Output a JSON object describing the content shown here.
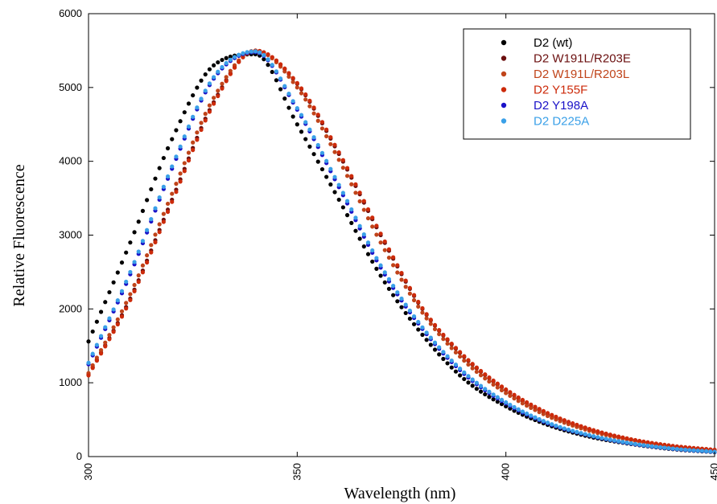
{
  "chart_data": {
    "type": "scatter",
    "title": "",
    "xlabel": "Wavelength (nm)",
    "ylabel": "Relative Fluorescence",
    "xlim": [
      300,
      450
    ],
    "ylim": [
      0,
      6000
    ],
    "x_ticks": [
      300,
      350,
      400,
      450
    ],
    "y_ticks": [
      0,
      1000,
      2000,
      3000,
      4000,
      5000,
      6000
    ],
    "x_tick_labels": [
      "300",
      "350",
      "400",
      "450"
    ],
    "y_tick_labels": [
      "0",
      "1000",
      "2000",
      "3000",
      "4000",
      "5000",
      "6000"
    ],
    "grid": false,
    "legend_position": "top-right",
    "x": [
      300,
      310,
      320,
      330,
      340,
      350,
      360,
      370,
      380,
      390,
      400,
      410,
      420,
      430,
      440,
      450
    ],
    "series": [
      {
        "name": "D2 (wt)",
        "color": "#000000",
        "values": [
          1560,
          2900,
          4300,
          5300,
          5450,
          4500,
          3480,
          2450,
          1650,
          1050,
          680,
          430,
          270,
          170,
          100,
          60
        ]
      },
      {
        "name": "D2 W191L/R203E",
        "color": "#6b0f0f",
        "values": [
          1110,
          2140,
          3480,
          4800,
          5500,
          5050,
          4100,
          3000,
          2000,
          1350,
          900,
          580,
          370,
          230,
          140,
          90
        ]
      },
      {
        "name": "D2 W191L/R203L",
        "color": "#c0441a",
        "values": [
          1130,
          2200,
          3560,
          4860,
          5500,
          5000,
          4020,
          2900,
          1950,
          1300,
          860,
          550,
          350,
          220,
          130,
          80
        ]
      },
      {
        "name": "D2 Y155F",
        "color": "#cc2a0a",
        "values": [
          1100,
          2120,
          3450,
          4780,
          5500,
          5060,
          4120,
          3020,
          2010,
          1360,
          910,
          590,
          375,
          235,
          145,
          92
        ]
      },
      {
        "name": "D2 Y198A",
        "color": "#1a12c8",
        "values": [
          1250,
          2470,
          3900,
          5120,
          5480,
          4700,
          3650,
          2560,
          1730,
          1120,
          720,
          450,
          285,
          175,
          105,
          62
        ]
      },
      {
        "name": "D2 D225A",
        "color": "#3aa0e8",
        "values": [
          1270,
          2500,
          3930,
          5140,
          5490,
          4720,
          3680,
          2590,
          1750,
          1140,
          735,
          460,
          290,
          180,
          108,
          65
        ]
      }
    ]
  }
}
